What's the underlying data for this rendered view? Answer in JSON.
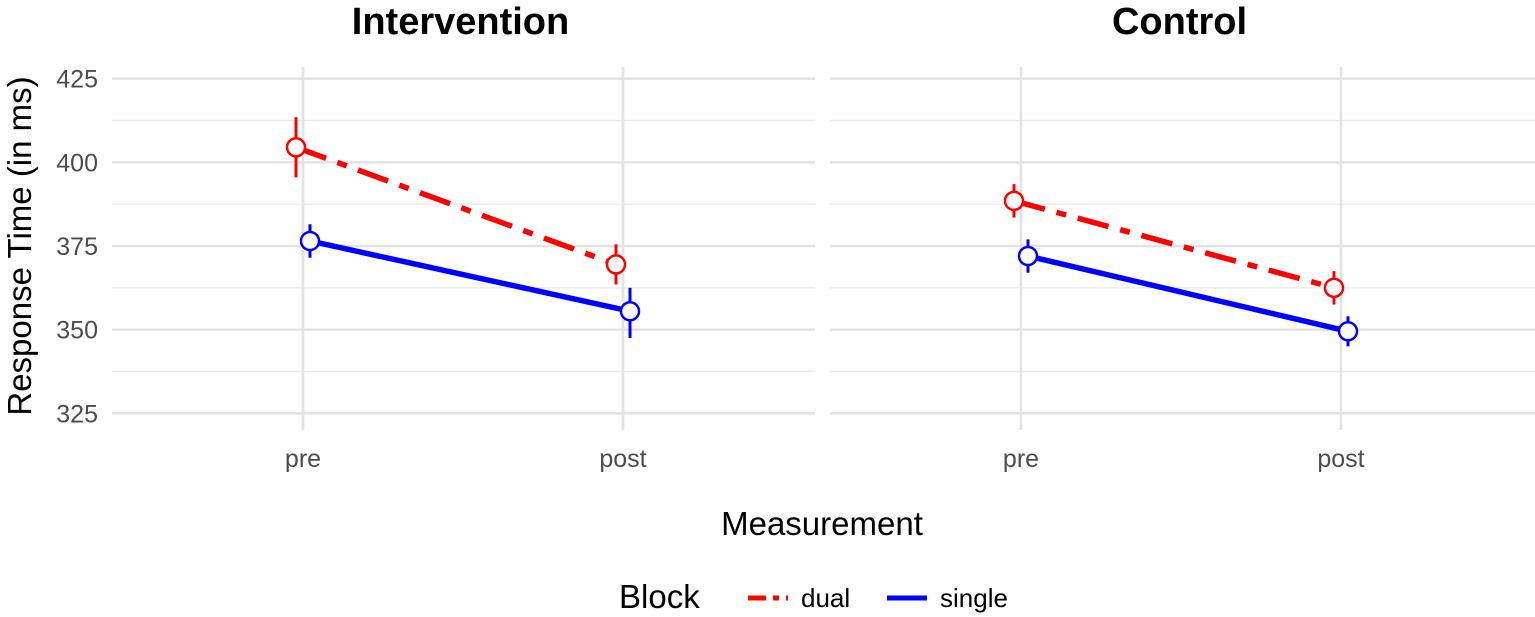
{
  "chart_data": {
    "type": "line",
    "facets": [
      "Intervention",
      "Control"
    ],
    "categories": [
      "pre",
      "post"
    ],
    "xlabel": "Measurement",
    "ylabel": "Response Time (in ms)",
    "ylim": [
      320,
      430
    ],
    "yticks": [
      325,
      350,
      375,
      400,
      425
    ],
    "grid": true,
    "legend": {
      "title": "Block",
      "position": "bottom",
      "entries": [
        "dual",
        "single"
      ]
    },
    "series": [
      {
        "name": "dual",
        "color": "#ff0000",
        "linetype": "dashdot",
        "panels": {
          "Intervention": {
            "values": [
              404.5,
              369.5
            ],
            "err_low": [
              395.5,
              363.5
            ],
            "err_high": [
              413.5,
              375.5
            ]
          },
          "Control": {
            "values": [
              388.5,
              362.5
            ],
            "err_low": [
              383.5,
              357.5
            ],
            "err_high": [
              393.5,
              367.5
            ]
          }
        }
      },
      {
        "name": "single",
        "color": "#0000ff",
        "linetype": "solid",
        "panels": {
          "Intervention": {
            "values": [
              376.5,
              355.5
            ],
            "err_low": [
              371.5,
              347.5
            ],
            "err_high": [
              381.5,
              362.5
            ]
          },
          "Control": {
            "values": [
              372.0,
              349.5
            ],
            "err_low": [
              367.0,
              345.0
            ],
            "err_high": [
              377.0,
              354.0
            ]
          }
        }
      }
    ]
  }
}
